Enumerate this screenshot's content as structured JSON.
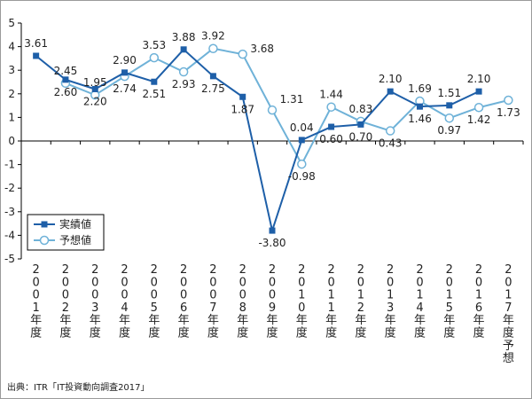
{
  "chart_data": {
    "type": "line",
    "categories": [
      "2001年度",
      "2002年度",
      "2003年度",
      "2004年度",
      "2005年度",
      "2006年度",
      "2007年度",
      "2008年度",
      "2009年度",
      "2010年度",
      "2011年度",
      "2012年度",
      "2013年度",
      "2014年度",
      "2015年度",
      "2016年度",
      "2017年度予想"
    ],
    "ylim": [
      -5,
      5
    ],
    "yticks": [
      "5",
      "4",
      "3",
      "2",
      "1",
      "0",
      "-1",
      "-2",
      "-3",
      "-4",
      "-5"
    ],
    "grid": false,
    "legend_position": "bottom-left",
    "series": [
      {
        "name": "実績値",
        "color": "#1e5fa8",
        "marker": "square",
        "values": [
          3.61,
          2.6,
          2.2,
          2.9,
          2.51,
          3.88,
          2.75,
          1.87,
          -3.8,
          0.04,
          0.6,
          0.7,
          2.1,
          1.46,
          1.51,
          2.1,
          null
        ],
        "labels": [
          "3.61",
          "2.60",
          "2.20",
          "2.90",
          "2.51",
          "3.88",
          "2.75",
          "1.87",
          "-3.80",
          "0.04",
          "0.60",
          "0.70",
          "2.10",
          "1.46",
          "1.51",
          "2.10",
          ""
        ]
      },
      {
        "name": "予想値",
        "color": "#6fb2d8",
        "marker": "circle",
        "values": [
          null,
          2.45,
          1.95,
          2.74,
          3.53,
          2.93,
          3.92,
          3.68,
          1.31,
          -0.98,
          1.44,
          0.83,
          0.43,
          1.69,
          0.97,
          1.42,
          1.73
        ],
        "labels": [
          "",
          "2.45",
          "1.95",
          "2.74",
          "3.53",
          "2.93",
          "3.92",
          "3.68",
          "1.31",
          "-0.98",
          "1.44",
          "0.83",
          "0.43",
          "1.69",
          "0.97",
          "1.42",
          "1.73"
        ]
      }
    ]
  },
  "source": "出典：ITR「IT投資動向調査2017」"
}
